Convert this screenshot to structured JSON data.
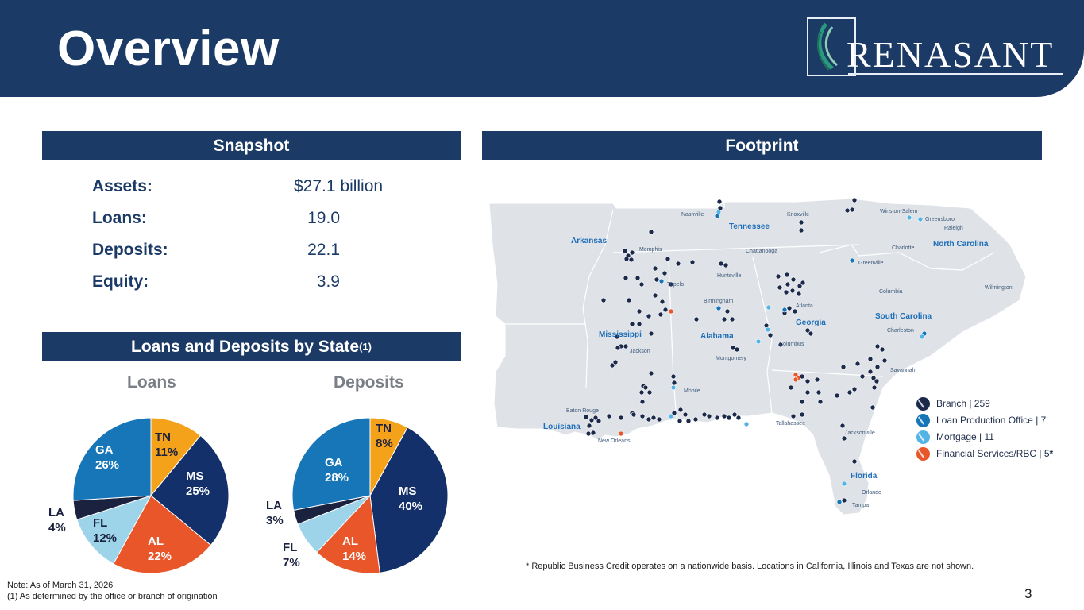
{
  "title": "Overview",
  "logo": {
    "name": "RENASANT"
  },
  "snapshot": {
    "header": "Snapshot",
    "rows": [
      {
        "label": "Assets:",
        "value": "$27.1 billion"
      },
      {
        "label": "Loans:",
        "value": "19.0"
      },
      {
        "label": "Deposits:",
        "value": "22.1"
      },
      {
        "label": "Equity:",
        "value": "3.9"
      }
    ]
  },
  "by_state": {
    "header": "Loans and Deposits by State",
    "header_sup": "(1)",
    "loans_title": "Loans",
    "deposits_title": "Deposits"
  },
  "chart_data": [
    {
      "type": "pie",
      "title": "Loans",
      "slices": [
        {
          "label": "TN",
          "value": 11,
          "color": "#f5a21b"
        },
        {
          "label": "MS",
          "value": 25,
          "color": "#13306a"
        },
        {
          "label": "AL",
          "value": 22,
          "color": "#e8562a"
        },
        {
          "label": "FL",
          "value": 12,
          "color": "#9dd4ea"
        },
        {
          "label": "LA",
          "value": 4,
          "color": "#1b2240"
        },
        {
          "label": "GA",
          "value": 26,
          "color": "#1676b8"
        }
      ],
      "display": {
        "TN": "11%",
        "MS": "25%",
        "AL": "22%",
        "FL": "12%",
        "LA": "4%",
        "GA": "26%"
      }
    },
    {
      "type": "pie",
      "title": "Deposits",
      "slices": [
        {
          "label": "TN",
          "value": 8,
          "color": "#f5a21b"
        },
        {
          "label": "MS",
          "value": 40,
          "color": "#13306a"
        },
        {
          "label": "AL",
          "value": 14,
          "color": "#e8562a"
        },
        {
          "label": "FL",
          "value": 7,
          "color": "#9dd4ea"
        },
        {
          "label": "LA",
          "value": 3,
          "color": "#1b2240"
        },
        {
          "label": "GA",
          "value": 28,
          "color": "#1676b8"
        }
      ],
      "display": {
        "TN": "8%",
        "MS": "40%",
        "AL": "14%",
        "FL": "7%",
        "LA": "3%",
        "GA": "28%"
      }
    }
  ],
  "footprint": {
    "header": "Footprint",
    "states": [
      "Arkansas",
      "Tennessee",
      "North Carolina",
      "Mississippi",
      "Alabama",
      "Georgia",
      "South Carolina",
      "Louisiana",
      "Florida"
    ],
    "cities": [
      "Nashville",
      "Knoxville",
      "Winston-Salem",
      "Greensboro",
      "Raleigh",
      "Memphis",
      "Chattanooga",
      "Charlotte",
      "Greenville",
      "Tupelo",
      "Huntsville",
      "Columbia",
      "Wilmington",
      "Birmingham",
      "Atlanta",
      "Charleston",
      "Jackson",
      "Columbus",
      "Montgomery",
      "Savannah",
      "Mobile",
      "Baton Rouge",
      "Tallahassee",
      "Jacksonville",
      "New Orleans",
      "Orlando",
      "Tampa"
    ],
    "legend": [
      {
        "label": "Branch | 259",
        "color": "#1b2a4a"
      },
      {
        "label": "Loan Production Office | 7",
        "color": "#1676b8"
      },
      {
        "label": "Mortgage | 11",
        "color": "#55b4e6"
      },
      {
        "label": "Financial Services/RBC | 5",
        "color": "#e8562a",
        "mark": "*"
      }
    ],
    "footnote": "* Republic Business Credit operates on a nationwide basis. Locations in California, Illinois and Texas are not shown."
  },
  "notes": {
    "line1": "Note: As of March 31, 2026",
    "line2": "(1) As determined by the office or branch of origination"
  },
  "page_number": "3"
}
